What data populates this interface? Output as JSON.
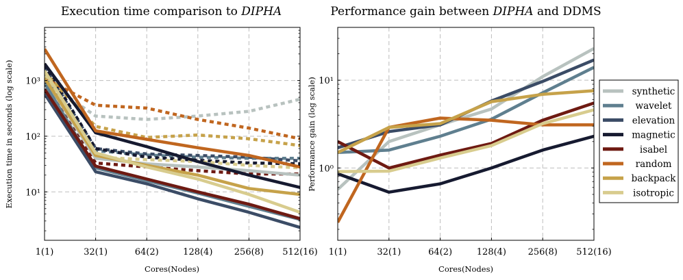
{
  "colors": {
    "synthetic": "#b8c2bf",
    "wavelet": "#5f7f8f",
    "elevation": "#3b4c66",
    "magnetic": "#161a30",
    "isabel": "#6e1a12",
    "random": "#c0661f",
    "backpack": "#c6a24a",
    "isotropic": "#d8cc8e"
  },
  "legend": {
    "items": [
      {
        "key": "synthetic",
        "label": "synthetic"
      },
      {
        "key": "wavelet",
        "label": "wavelet"
      },
      {
        "key": "elevation",
        "label": "elevation"
      },
      {
        "key": "magnetic",
        "label": "magnetic"
      },
      {
        "key": "isabel",
        "label": "isabel"
      },
      {
        "key": "random",
        "label": "random"
      },
      {
        "key": "backpack",
        "label": "backpack"
      },
      {
        "key": "isotropic",
        "label": "isotropic"
      }
    ]
  },
  "chart_data": [
    {
      "type": "line",
      "title": "Execution time comparison to ",
      "title_italic": "DIPHA",
      "xlabel": "Cores(Nodes)",
      "ylabel": "Execution time in seconds (log scale)",
      "yscale": "log",
      "ylim": [
        1.35,
        9000
      ],
      "grid": true,
      "categories": [
        "1(1)",
        "32(1)",
        "64(2)",
        "128(4)",
        "256(8)",
        "512(16)"
      ],
      "ytick_labels": [
        {
          "value": 10,
          "label": "10¹"
        },
        {
          "value": 100,
          "label": "10²"
        },
        {
          "value": 1000,
          "label": "10³"
        }
      ],
      "series_solid_ddms": [
        {
          "key": "synthetic",
          "values": [
            1100,
            40,
            32,
            28,
            24,
            20
          ]
        },
        {
          "key": "wavelet",
          "values": [
            900,
            27,
            16,
            9.5,
            5.5,
            3.2
          ]
        },
        {
          "key": "elevation",
          "values": [
            580,
            23,
            14,
            7.5,
            4.3,
            2.3
          ]
        },
        {
          "key": "magnetic",
          "values": [
            2000,
            115,
            65,
            35,
            20,
            12
          ]
        },
        {
          "key": "isabel",
          "values": [
            700,
            29,
            17,
            10,
            6,
            3.3
          ]
        },
        {
          "key": "random",
          "values": [
            3700,
            125,
            88,
            62,
            45,
            28
          ]
        },
        {
          "key": "backpack",
          "values": [
            1100,
            45,
            30,
            20,
            11.5,
            9
          ]
        },
        {
          "key": "isotropic",
          "values": [
            1500,
            50,
            28,
            17,
            9,
            4.3
          ]
        }
      ],
      "series_dashed_dipha": [
        {
          "key": "synthetic",
          "values": [
            1000,
            230,
            200,
            230,
            280,
            460
          ]
        },
        {
          "key": "wavelet",
          "values": [
            1300,
            55,
            46,
            42,
            40,
            40
          ]
        },
        {
          "key": "elevation",
          "values": [
            1700,
            60,
            48,
            45,
            42,
            36
          ]
        },
        {
          "key": "magnetic",
          "values": [
            1900,
            60,
            42,
            37,
            33,
            32
          ]
        },
        {
          "key": "isabel",
          "values": [
            900,
            33,
            28,
            24,
            21,
            21
          ]
        },
        {
          "key": "random",
          "values": [
            1100,
            360,
            320,
            200,
            140,
            90
          ]
        },
        {
          "key": "backpack",
          "values": [
            1400,
            150,
            95,
            105,
            90,
            68
          ]
        },
        {
          "key": "isotropic",
          "values": [
            1200,
            42,
            38,
            35,
            30,
            27
          ]
        }
      ]
    },
    {
      "type": "line",
      "title": "Performance gain between ",
      "title_italic": "DIPHA",
      "title_suffix": " and DDMS",
      "xlabel": "Cores(Nodes)",
      "ylabel": "Performance gain (log scale)",
      "yscale": "log",
      "ylim": [
        0.15,
        40
      ],
      "grid": true,
      "categories": [
        "1(1)",
        "32(1)",
        "64(2)",
        "128(4)",
        "256(8)",
        "512(16)"
      ],
      "ytick_labels": [
        {
          "value": 1,
          "label": "10⁰"
        },
        {
          "value": 10,
          "label": "10¹"
        }
      ],
      "series": [
        {
          "key": "synthetic",
          "values": [
            0.57,
            2.0,
            3.1,
            4.7,
            11,
            23
          ]
        },
        {
          "key": "wavelet",
          "values": [
            1.5,
            1.6,
            2.3,
            3.6,
            7.2,
            14
          ]
        },
        {
          "key": "elevation",
          "values": [
            1.7,
            2.6,
            3.1,
            5.8,
            9.7,
            17
          ]
        },
        {
          "key": "magnetic",
          "values": [
            0.86,
            0.53,
            0.66,
            1.0,
            1.6,
            2.3
          ]
        },
        {
          "key": "isabel",
          "values": [
            2.0,
            1.0,
            1.4,
            1.9,
            3.5,
            5.5
          ]
        },
        {
          "key": "random",
          "values": [
            0.24,
            2.9,
            3.7,
            3.5,
            3.1,
            3.1
          ]
        },
        {
          "key": "backpack",
          "values": [
            1.5,
            2.9,
            3.2,
            5.7,
            6.9,
            7.6
          ]
        },
        {
          "key": "isotropic",
          "values": [
            0.91,
            0.92,
            1.3,
            1.8,
            3.2,
            4.6
          ]
        }
      ]
    }
  ]
}
